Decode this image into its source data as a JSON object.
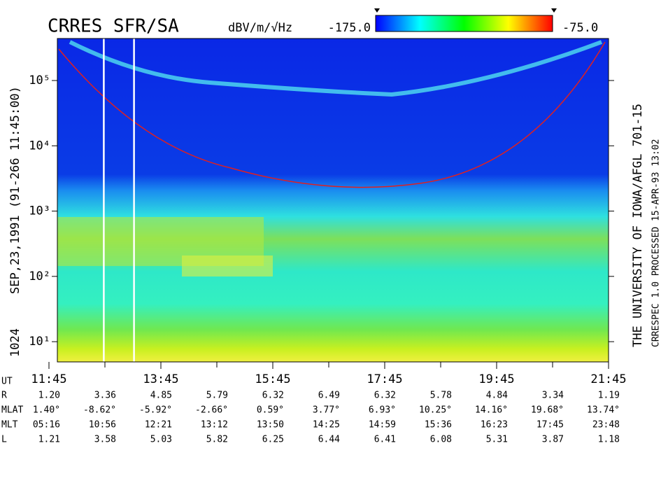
{
  "chart_data": {
    "type": "spectrogram",
    "title": "CRRES SFR/SA",
    "colorbar": {
      "unit": "dBV/m/√Hz",
      "min": {
        "value": -175,
        "label": "-175.0"
      },
      "max": {
        "value": -75,
        "label": "-75.0"
      },
      "colors": [
        "#0000ff",
        "#00ffff",
        "#00ff00",
        "#ffff00",
        "#ff0000"
      ]
    },
    "left_texts": [
      "SEP,23,1991  (91-266 11:45:00)",
      "1024"
    ],
    "right_texts": [
      "THE UNIVERSITY OF IOWA/AFGL 701-15",
      "CRRESPEC 1.0   PROCESSED 15-APR-93  13:02"
    ],
    "x_label": "UT",
    "xlim": [
      11.75,
      21.75
    ],
    "xticks": [
      {
        "value": 11.75,
        "label": "11:45"
      },
      {
        "value": 13.75,
        "label": "13:45"
      },
      {
        "value": 15.75,
        "label": "15:45"
      },
      {
        "value": 17.75,
        "label": "17:45"
      },
      {
        "value": 19.75,
        "label": "19:45"
      },
      {
        "value": 21.75,
        "label": "21:45"
      }
    ],
    "xminor_ticks": [
      12.75,
      14.75,
      16.75,
      18.75,
      20.75
    ],
    "log_y": true,
    "ylim": [
      4.9,
      440000
    ],
    "yticks": [
      {
        "value": 10,
        "label": "10¹"
      },
      {
        "value": 100,
        "label": "10²"
      },
      {
        "value": 1000,
        "label": "10³"
      },
      {
        "value": 10000,
        "label": "10⁴"
      },
      {
        "value": 100000,
        "label": "10⁵"
      }
    ],
    "vertical_lines": [
      12.73,
      13.27
    ],
    "ephemeris": [
      {
        "name": "R",
        "values": [
          "1.20",
          "3.36",
          "4.85",
          "5.79",
          "6.32",
          "6.49",
          "6.32",
          "5.78",
          "4.84",
          "3.34",
          "1.19"
        ]
      },
      {
        "name": "MLAT",
        "values": [
          "1.40°",
          "-8.62°",
          "-5.92°",
          "-2.66°",
          "0.59°",
          "3.77°",
          "6.93°",
          "10.25°",
          "14.16°",
          "19.68°",
          "13.74°"
        ]
      },
      {
        "name": "MLT",
        "values": [
          "05:16",
          "10:56",
          "12:21",
          "13:12",
          "13:50",
          "14:25",
          "14:59",
          "15:36",
          "16:23",
          "17:45",
          "23:48"
        ]
      },
      {
        "name": "L",
        "values": [
          "1.21",
          "3.58",
          "5.03",
          "5.82",
          "6.25",
          "6.44",
          "6.41",
          "6.08",
          "5.31",
          "3.87",
          "1.18"
        ]
      }
    ]
  }
}
